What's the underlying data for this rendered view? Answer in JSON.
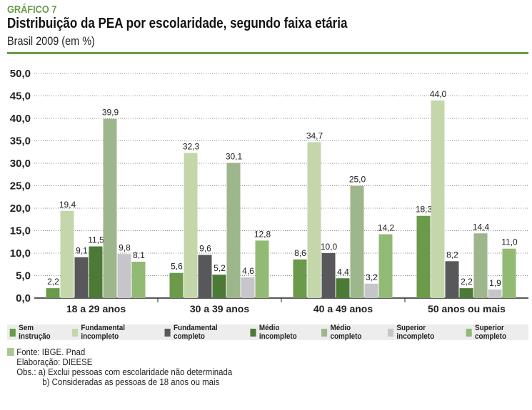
{
  "header": {
    "kicker": "GRÁFICO 7",
    "title": "Distribuição da PEA por escolaridade, segundo faixa etária",
    "subtitle": "Brasil 2009 (em %)",
    "accent": "#6a9a4a"
  },
  "chart_data": {
    "type": "bar",
    "title": "Distribuição da PEA por escolaridade, segundo faixa etária",
    "categories": [
      "18 a 29 anos",
      "30 a 39 anos",
      "40 a 49 anos",
      "50 anos ou mais"
    ],
    "ylim": [
      0,
      50
    ],
    "yticks": [
      "0,0",
      "5,0",
      "10,0",
      "15,0",
      "20,0",
      "25,0",
      "30,0",
      "35,0",
      "40,0",
      "45,0",
      "50,0"
    ],
    "grid": true,
    "legend_position": "bottom",
    "series": [
      {
        "name": "Sem instrução",
        "color": "#6a9a4a",
        "values": [
          2.2,
          5.6,
          8.6,
          18.3
        ],
        "labels": [
          "2,2",
          "5,6",
          "8,6",
          "18,3"
        ]
      },
      {
        "name": "Fundamental incompleto",
        "color": "#c3d7ab",
        "values": [
          19.4,
          32.3,
          34.7,
          44.0
        ],
        "labels": [
          "19,4",
          "32,3",
          "34,7",
          "44,0"
        ]
      },
      {
        "name": "Fundamental completo",
        "color": "#58585a",
        "values": [
          9.1,
          9.6,
          10.0,
          8.2
        ],
        "labels": [
          "9,1",
          "9,6",
          "10,0",
          "8,2"
        ]
      },
      {
        "name": "Médio incompleto",
        "color": "#4c7a36",
        "values": [
          11.5,
          5.2,
          4.4,
          2.2
        ],
        "labels": [
          "11,5",
          "5,2",
          "4,4",
          "2,2"
        ]
      },
      {
        "name": "Médio completo",
        "color": "#9db68b",
        "values": [
          39.9,
          30.1,
          25.0,
          14.4
        ],
        "labels": [
          "39,9",
          "30,1",
          "25,0",
          "14,4"
        ]
      },
      {
        "name": "Superior incompleto",
        "color": "#c5c5ca",
        "values": [
          9.8,
          4.6,
          3.2,
          1.9
        ],
        "labels": [
          "9,8",
          "4,6",
          "3,2",
          "1,9"
        ]
      },
      {
        "name": "Superior completo",
        "color": "#92ba74",
        "values": [
          8.1,
          12.8,
          14.2,
          11.0
        ],
        "labels": [
          "8,1",
          "12,8",
          "14,2",
          "11,0"
        ]
      }
    ]
  },
  "footer": {
    "source": "Fonte: IBGE. Pnad",
    "elaboration": "Elaboração: DIEESE",
    "obs_a": "Obs.:  a) Exclui pessoas com escolaridade não determinada",
    "obs_b": "b) Consideradas as pessoas de 18 anos ou mais"
  }
}
